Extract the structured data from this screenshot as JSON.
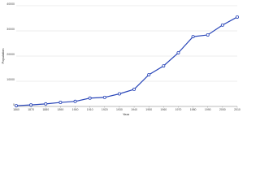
{
  "chart_data": {
    "type": "line",
    "x_label": "Year",
    "y_label": "Population",
    "x": [
      1860,
      1870,
      1880,
      1890,
      1900,
      1910,
      1920,
      1930,
      1940,
      1950,
      1960,
      1970,
      1980,
      1990,
      2000,
      2010
    ],
    "series": [
      {
        "name": "Population",
        "color": "#2845b8",
        "values": [
          300,
          600,
          1000,
          1600,
          2000,
          3300,
          3600,
          5000,
          6800,
          12600,
          16100,
          21300,
          27700,
          28400,
          32300,
          35500
        ]
      }
    ],
    "xlim": [
      1860,
      2010
    ],
    "xticks": [
      1860,
      1870,
      1880,
      1890,
      1900,
      1910,
      1920,
      1930,
      1940,
      1950,
      1960,
      1970,
      1980,
      1990,
      2000,
      2010
    ],
    "ylim": [
      0,
      40000
    ],
    "yticks": [
      0,
      10000,
      20000,
      30000,
      40000
    ],
    "grid": true
  }
}
